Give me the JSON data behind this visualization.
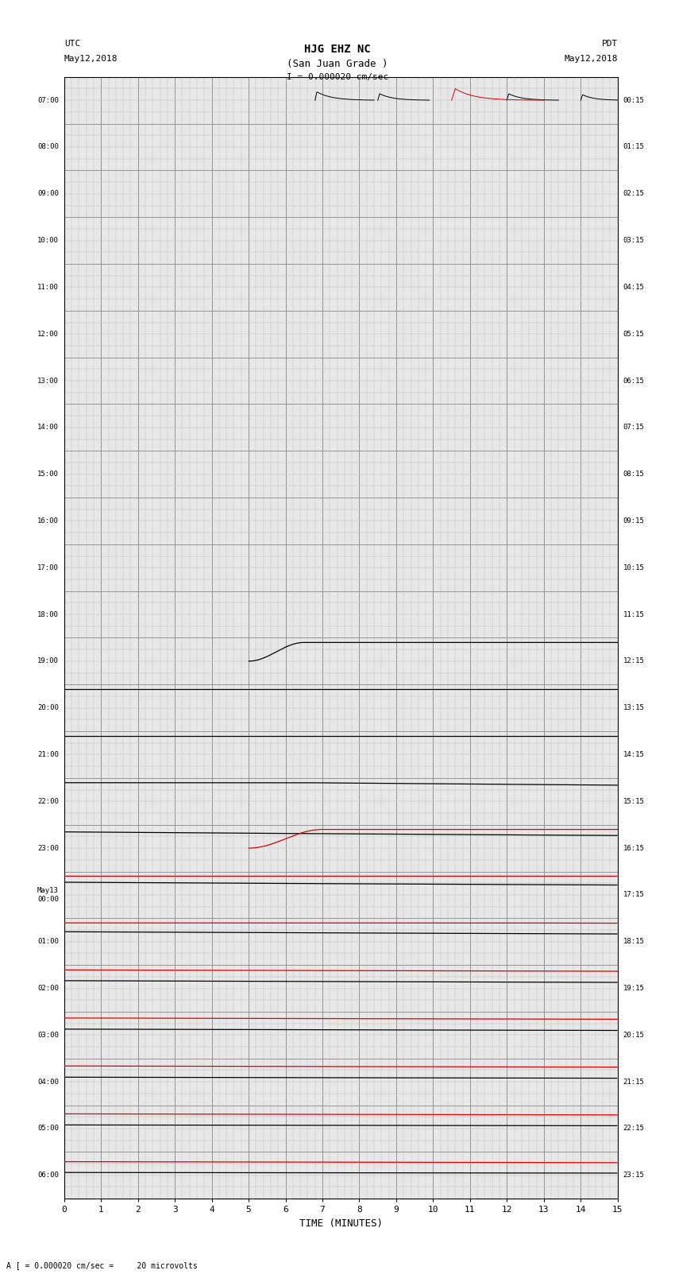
{
  "title_line1": "HJG EHZ NC",
  "title_line2": "(San Juan Grade )",
  "title_line3": "I = 0.000020 cm/sec",
  "left_label_line1": "UTC",
  "left_label_line2": "May12,2018",
  "right_label_line1": "PDT",
  "right_label_line2": "May12,2018",
  "xlabel": "TIME (MINUTES)",
  "bottom_note": "A [ = 0.000020 cm/sec =     20 microvolts",
  "xlim": [
    0,
    15
  ],
  "num_rows": 24,
  "row_labels_left": [
    "07:00",
    "08:00",
    "09:00",
    "10:00",
    "11:00",
    "12:00",
    "13:00",
    "14:00",
    "15:00",
    "16:00",
    "17:00",
    "18:00",
    "19:00",
    "20:00",
    "21:00",
    "22:00",
    "23:00",
    "May13\n00:00",
    "01:00",
    "02:00",
    "03:00",
    "04:00",
    "05:00",
    "06:00"
  ],
  "row_labels_right": [
    "00:15",
    "01:15",
    "02:15",
    "03:15",
    "04:15",
    "05:15",
    "06:15",
    "07:15",
    "08:15",
    "09:15",
    "10:15",
    "11:15",
    "12:15",
    "13:15",
    "14:15",
    "15:15",
    "16:15",
    "17:15",
    "18:15",
    "19:15",
    "20:15",
    "21:15",
    "22:15",
    "23:15"
  ],
  "bg_color": "#e8e8e8",
  "grid_major_color": "#888888",
  "grid_minor_color": "#bbbbbb",
  "line_color_black": "#000000",
  "line_color_red": "#dd0000",
  "line_color_blue": "#0000cc",
  "line_color_green": "#007700",
  "signals": [
    {
      "color": "#000000",
      "t0_min": 185.0,
      "rise_dur": 1.5,
      "plateau_dur": 45.0,
      "decay_tau": 60.0,
      "amplitude": 0.4,
      "lw": 0.9
    },
    {
      "color": "#dd0000",
      "t0_min": 245.0,
      "rise_dur": 2.0,
      "plateau_dur": 35.0,
      "decay_tau": 200.0,
      "amplitude": 0.4,
      "lw": 0.9
    },
    {
      "color": "#0000cc",
      "t0_min": 415.0,
      "rise_dur": 1.2,
      "plateau_dur": 5.0,
      "decay_tau": 85.0,
      "amplitude": 0.4,
      "lw": 0.9
    },
    {
      "color": "#007700",
      "t0_min": 560.0,
      "rise_dur": 1.0,
      "plateau_dur": 30.0,
      "decay_tau": 50.0,
      "amplitude": 0.36,
      "lw": 0.9
    }
  ]
}
